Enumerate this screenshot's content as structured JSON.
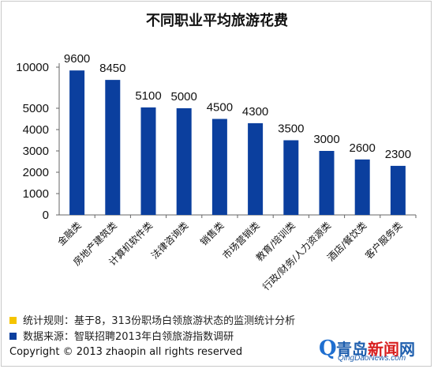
{
  "chart_data": {
    "type": "bar",
    "title": "不同职业平均旅游花费",
    "categories": [
      "金融类",
      "房地产建筑类",
      "计算机软件类",
      "法律咨询类",
      "销售类",
      "市场营销类",
      "教育/培训类",
      "行政/财务/人力资源类",
      "酒店/餐饮类",
      "客户服务类"
    ],
    "values": [
      9600,
      8450,
      5100,
      5000,
      4500,
      4300,
      3500,
      3000,
      2600,
      2300
    ],
    "data_labels": [
      "9600",
      "8450",
      "5100",
      "5000",
      "4500",
      "4300",
      "3500",
      "3000",
      "2600",
      "2300"
    ],
    "y_ticks": [
      0,
      1000,
      2000,
      3000,
      4000,
      5000,
      10000
    ],
    "y_tick_labels": [
      "0",
      "1000",
      "2000",
      "3000",
      "4000",
      "5000",
      "10000"
    ],
    "ylim": [
      0,
      10000
    ],
    "y_axis_note": "broken axis: linear 0–5000, compressed 5000–10000",
    "grid": false,
    "bar_color": "#0b3f9e",
    "xlabel": "",
    "ylabel": ""
  },
  "notes": {
    "rule": "统计规则：基于8，313份职场白领旅游状态的监测统计分析",
    "rule_color": "#f5c400",
    "source": "数据来源：智联招聘2013年白领旅游指数调研",
    "source_color": "#0b3f9e"
  },
  "copyright": "Copyright © 2013 zhaopin all rights reserved",
  "watermark": {
    "title_part1": "青岛",
    "title_part2": "新闻",
    "title_part3": "网",
    "url": "QingDaoNews.com",
    "logo_icon": "q-logo-icon"
  }
}
